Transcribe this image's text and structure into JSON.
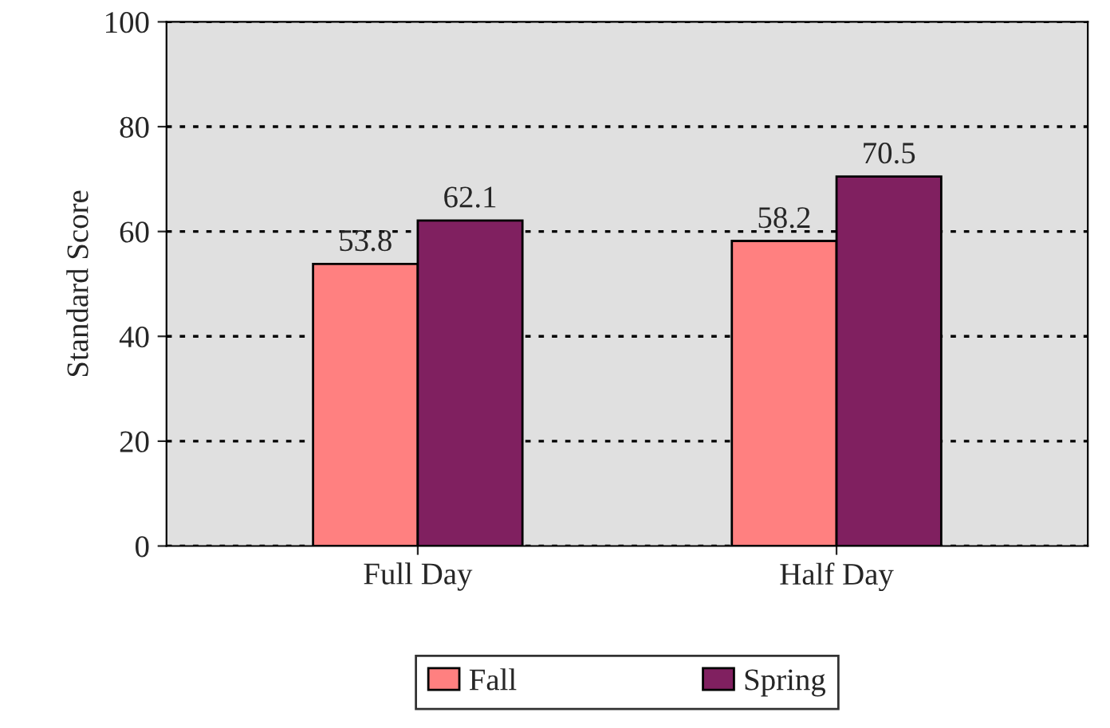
{
  "chart_data": {
    "type": "bar",
    "ylabel": "Standard Score",
    "categories": [
      "Full Day",
      "Half Day"
    ],
    "series": [
      {
        "name": "Fall",
        "color": "#ff8080",
        "values": [
          53.8,
          58.2
        ]
      },
      {
        "name": "Spring",
        "color": "#802060",
        "values": [
          62.1,
          70.5
        ]
      }
    ],
    "ylim": [
      0,
      100
    ],
    "yticks": [
      0,
      20,
      40,
      60,
      80,
      100
    ],
    "grid": "y",
    "legend": "bottom",
    "data_labels": true
  }
}
